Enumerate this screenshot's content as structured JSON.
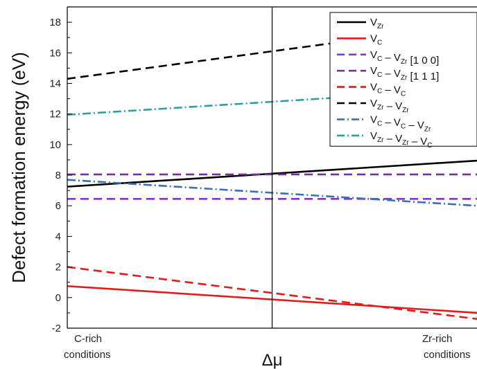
{
  "chart_data": {
    "type": "line",
    "ylabel": "Defect formation energy (eV)",
    "xlabel": "Δμ",
    "x_tick_labels": [
      {
        "line1": "C-rich",
        "line2": "conditions"
      },
      {
        "line1": "Zr-rich",
        "line2": "conditions"
      }
    ],
    "ylim": [
      -2,
      19
    ],
    "yticks": [
      -2,
      0,
      2,
      4,
      6,
      8,
      10,
      12,
      14,
      16,
      18
    ],
    "x": [
      0,
      1
    ],
    "vertical_line_x": 0.5,
    "series": [
      {
        "name": "V_Zr",
        "label_parts": [
          [
            "V",
            ""
          ],
          [
            "Zr",
            "sub"
          ]
        ],
        "values": [
          7.25,
          8.95
        ],
        "color": "#000000",
        "dash": "solid"
      },
      {
        "name": "V_C",
        "label_parts": [
          [
            "V",
            ""
          ],
          [
            "C",
            "sub"
          ]
        ],
        "values": [
          0.75,
          -1.0
        ],
        "color": "#e41a1a",
        "dash": "solid"
      },
      {
        "name": "V_C – V_Zr [1 0 0]",
        "label_parts": [
          [
            "V",
            ""
          ],
          [
            "C",
            "sub"
          ],
          [
            " – V",
            ""
          ],
          [
            "Zr",
            "sub"
          ],
          [
            " [1 0 0]",
            ""
          ]
        ],
        "values": [
          6.45,
          6.45
        ],
        "color": "#8a2be2",
        "dash": "dash"
      },
      {
        "name": "V_C – V_Zr [1 1 1]",
        "label_parts": [
          [
            "V",
            ""
          ],
          [
            "C",
            "sub"
          ],
          [
            " – V",
            ""
          ],
          [
            "Zr",
            "sub"
          ],
          [
            " [1 1 1]",
            ""
          ]
        ],
        "values": [
          8.05,
          8.05
        ],
        "color": "#7b2a9e",
        "dash": "dash"
      },
      {
        "name": "V_C – V_C",
        "label_parts": [
          [
            "V",
            ""
          ],
          [
            "C",
            "sub"
          ],
          [
            " – V",
            ""
          ],
          [
            "C",
            "sub"
          ]
        ],
        "values": [
          2.0,
          -1.4
        ],
        "color": "#e41a1a",
        "dash": "dash"
      },
      {
        "name": "V_Zr – V_Zr",
        "label_parts": [
          [
            "V",
            ""
          ],
          [
            "Zr",
            "sub"
          ],
          [
            " – V",
            ""
          ],
          [
            "Zr",
            "sub"
          ]
        ],
        "values": [
          14.3,
          17.9
        ],
        "color": "#000000",
        "dash": "dash"
      },
      {
        "name": "V_C – V_C – V_Zr",
        "label_parts": [
          [
            "V",
            ""
          ],
          [
            "C",
            "sub"
          ],
          [
            " – V",
            ""
          ],
          [
            "C",
            "sub"
          ],
          [
            " – V",
            ""
          ],
          [
            "Zr",
            "sub"
          ]
        ],
        "values": [
          7.7,
          6.0
        ],
        "color": "#3b6fb5",
        "dash": "dashdot"
      },
      {
        "name": "V_Zr – V_Zr – V_C",
        "label_parts": [
          [
            "V",
            ""
          ],
          [
            "Zr",
            "sub"
          ],
          [
            " – V",
            ""
          ],
          [
            "Zr",
            "sub"
          ],
          [
            " – V",
            ""
          ],
          [
            "C",
            "sub"
          ]
        ],
        "values": [
          11.95,
          13.65
        ],
        "color": "#2aa0a0",
        "dash": "dashdot"
      }
    ],
    "legend_position": "top-right",
    "grid": false
  }
}
